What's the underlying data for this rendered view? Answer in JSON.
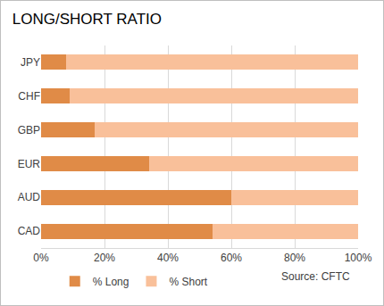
{
  "chart_data": {
    "type": "bar",
    "title": "LONG/SHORT RATIO",
    "orientation": "horizontal",
    "stacked": true,
    "grid": true,
    "legend": "bottom",
    "categories": [
      "JPY",
      "CHF",
      "GBP",
      "EUR",
      "AUD",
      "CAD"
    ],
    "series": [
      {
        "name": "% Long",
        "color": "#e08b47",
        "values": [
          8,
          9,
          17,
          34,
          60,
          54
        ]
      },
      {
        "name": "% Short",
        "color": "#f9c09a",
        "values": [
          92,
          91,
          83,
          66,
          40,
          46
        ]
      }
    ],
    "xlim": [
      0,
      100
    ],
    "xticks": [
      {
        "value": 0,
        "label": "0%"
      },
      {
        "value": 20,
        "label": "20%"
      },
      {
        "value": 40,
        "label": "40%"
      },
      {
        "value": 60,
        "label": "60%"
      },
      {
        "value": 80,
        "label": "80%"
      },
      {
        "value": 100,
        "label": "100%"
      }
    ],
    "annotations": [
      "Source: CFTC"
    ]
  }
}
